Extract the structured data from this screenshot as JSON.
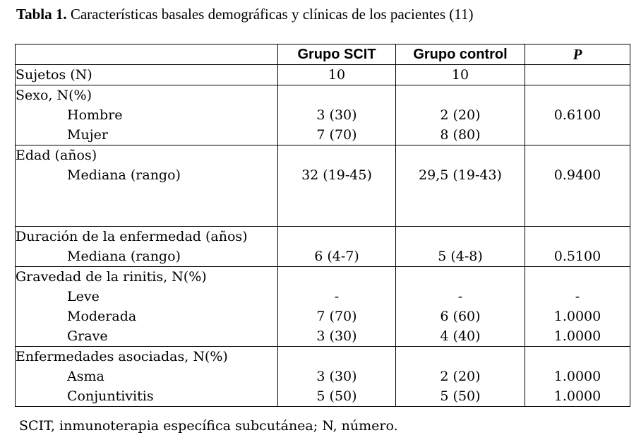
{
  "caption": {
    "label": "Tabla 1.",
    "text": " Características basales demográficas y clínicas de los pacientes (11)"
  },
  "table": {
    "headers": [
      "",
      "Grupo SCIT",
      "Grupo control",
      "P"
    ],
    "sujetos": {
      "label": "Sujetos (N)",
      "scit": "10",
      "control": "10",
      "p": ""
    },
    "sexo": {
      "label": "Sexo, N(%)",
      "rows": [
        {
          "label": "Hombre",
          "scit": "3 (30)",
          "control": "2 (20)"
        },
        {
          "label": "Mujer",
          "scit": "7 (70)",
          "control": "8 (80)"
        }
      ],
      "p": "0.6100"
    },
    "edad": {
      "label": "Edad (años)",
      "sub": "Mediana (rango)",
      "scit": "32 (19-45)",
      "control": "29,5 (19-43)",
      "p": "0.9400"
    },
    "duracion": {
      "label": "Duración de la enfermedad (años)",
      "sub": "Mediana (rango)",
      "scit": "6 (4-7)",
      "control": "5 (4-8)",
      "p": "0.5100"
    },
    "gravedad": {
      "label": "Gravedad de la rinitis, N(%)",
      "rows": [
        {
          "label": "Leve",
          "scit": "-",
          "control": "-",
          "p": "-"
        },
        {
          "label": "Moderada",
          "scit": "7 (70)",
          "control": "6 (60)",
          "p": "1.0000"
        },
        {
          "label": "Grave",
          "scit": "3 (30)",
          "control": "4 (40)",
          "p": "1.0000"
        }
      ]
    },
    "enfermedades": {
      "label": "Enfermedades asociadas, N(%)",
      "rows": [
        {
          "label": "Asma",
          "scit": "3 (30)",
          "control": "2 (20)",
          "p": "1.0000"
        },
        {
          "label": "Conjuntivitis",
          "scit": "5 (50)",
          "control": "5 (50)",
          "p": "1.0000"
        }
      ]
    }
  },
  "footnote": "SCIT, inmunoterapia específica subcutánea; N, número."
}
